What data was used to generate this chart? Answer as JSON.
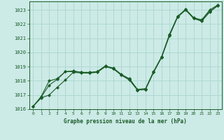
{
  "title": "Graphe pression niveau de la mer (hPa)",
  "background_color": "#cceae6",
  "grid_color": "#b0d8d2",
  "line_color": "#1a5c28",
  "marker_color": "#1a5c28",
  "xlim": [
    -0.5,
    23.5
  ],
  "ylim": [
    1016,
    1023.6
  ],
  "yticks": [
    1016,
    1017,
    1018,
    1019,
    1020,
    1021,
    1022,
    1023
  ],
  "xticks": [
    0,
    1,
    2,
    3,
    4,
    5,
    6,
    7,
    8,
    9,
    10,
    11,
    12,
    13,
    14,
    15,
    16,
    17,
    18,
    19,
    20,
    21,
    22,
    23
  ],
  "series": [
    [
      1016.2,
      1016.8,
      1017.0,
      1017.55,
      1018.05,
      1018.6,
      1018.55,
      1018.55,
      1018.6,
      1019.0,
      1018.85,
      1018.4,
      1018.1,
      1017.35,
      1017.4,
      1018.6,
      1019.65,
      1021.2,
      1022.5,
      1023.0,
      1022.4,
      1022.2,
      1022.85,
      1023.3
    ],
    [
      1016.2,
      1016.85,
      1017.7,
      1018.1,
      1018.65,
      1018.65,
      1018.6,
      1018.6,
      1018.65,
      1019.05,
      1018.9,
      1018.45,
      1018.15,
      1017.4,
      1017.45,
      1018.65,
      1019.7,
      1021.3,
      1022.55,
      1023.05,
      1022.45,
      1022.3,
      1023.0,
      1023.35
    ],
    [
      1016.2,
      1016.9,
      1018.0,
      1018.15,
      1018.65,
      1018.7,
      1018.6,
      1018.55,
      1018.65,
      1019.05,
      1018.85,
      1018.4,
      1018.05,
      1017.35,
      1017.4,
      1018.6,
      1019.65,
      1021.25,
      1022.5,
      1023.0,
      1022.4,
      1022.25,
      1022.9,
      1023.3
    ]
  ]
}
